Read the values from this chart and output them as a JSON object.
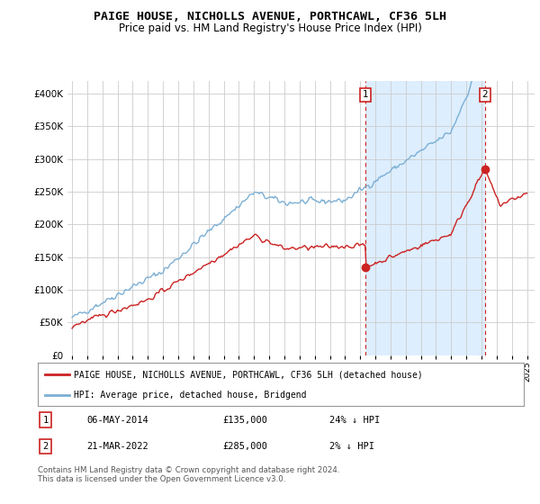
{
  "title": "PAIGE HOUSE, NICHOLLS AVENUE, PORTHCAWL, CF36 5LH",
  "subtitle": "Price paid vs. HM Land Registry's House Price Index (HPI)",
  "ylim": [
    0,
    420000
  ],
  "yticks": [
    0,
    50000,
    100000,
    150000,
    200000,
    250000,
    300000,
    350000,
    400000
  ],
  "hpi_color": "#7bafd4",
  "sale_color": "#cc2222",
  "dashed_color": "#cc2222",
  "shade_color": "#ddeeff",
  "point1_year": 2014.35,
  "point1_value": 135000,
  "point2_year": 2022.22,
  "point2_value": 285000,
  "legend_label1": "PAIGE HOUSE, NICHOLLS AVENUE, PORTHCAWL, CF36 5LH (detached house)",
  "legend_label2": "HPI: Average price, detached house, Bridgend",
  "note1_label": "1",
  "note1_date": "06-MAY-2014",
  "note1_price": "£135,000",
  "note1_hpi": "24% ↓ HPI",
  "note2_label": "2",
  "note2_date": "21-MAR-2022",
  "note2_price": "£285,000",
  "note2_hpi": "2% ↓ HPI",
  "footer": "Contains HM Land Registry data © Crown copyright and database right 2024.\nThis data is licensed under the Open Government Licence v3.0.",
  "background_color": "#ffffff",
  "grid_color": "#cccccc",
  "title_fontsize": 10,
  "subtitle_fontsize": 9,
  "xstart": 1995,
  "xend": 2025
}
